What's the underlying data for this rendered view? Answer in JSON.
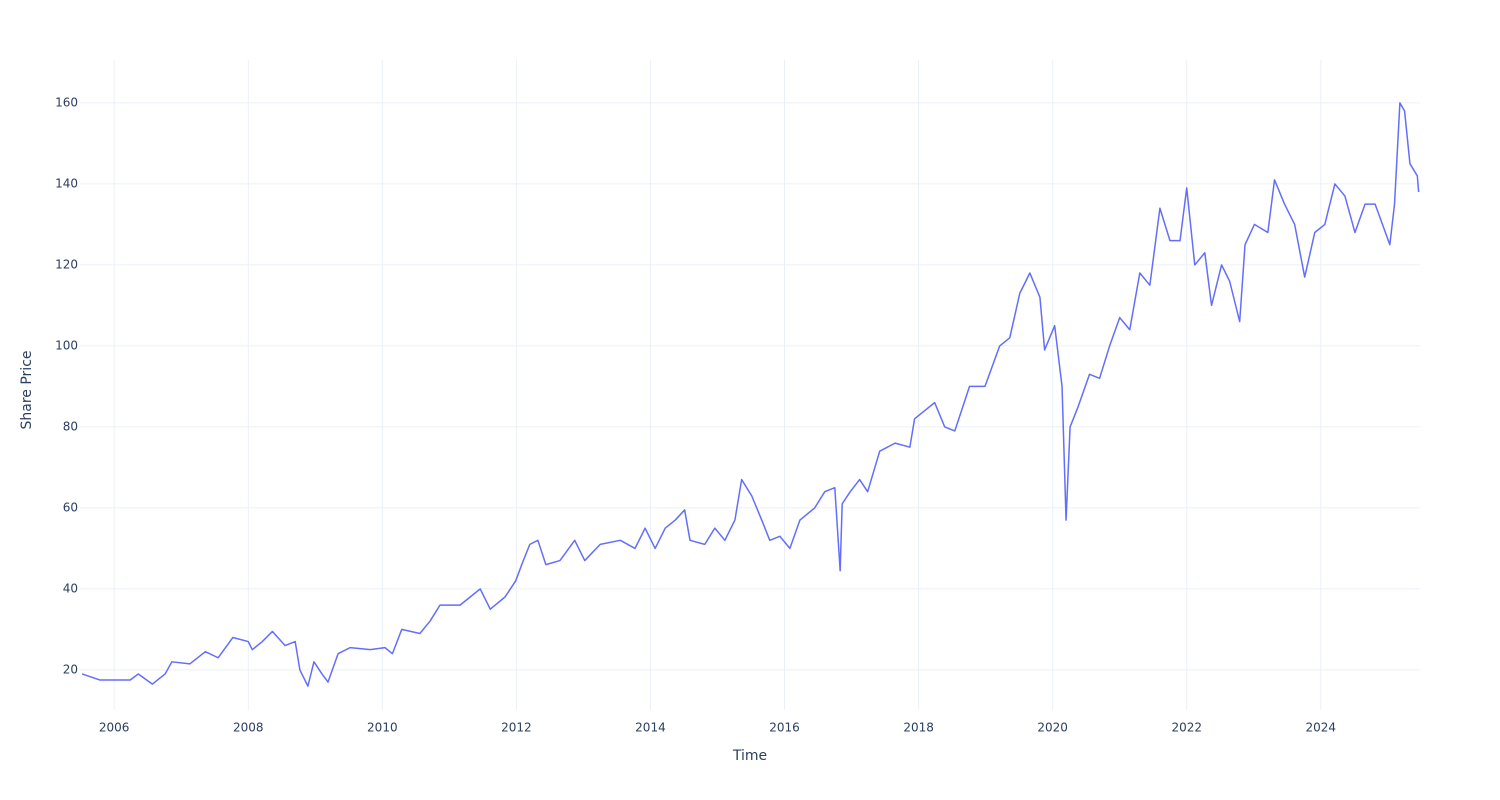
{
  "chart_data": {
    "type": "line",
    "x_label": "Time",
    "y_label": "Share Price",
    "color": "#636efa",
    "grid": true,
    "xlim": [
      2005.49,
      2025.48
    ],
    "ylim": [
      10.1,
      170.6
    ],
    "xticks": [
      2006,
      2008,
      2010,
      2012,
      2014,
      2016,
      2018,
      2020,
      2022,
      2024
    ],
    "yticks": [
      20,
      40,
      60,
      80,
      100,
      120,
      140,
      160
    ],
    "x": [
      2005.52,
      2005.79,
      2006.24,
      2006.36,
      2006.57,
      2006.76,
      2006.86,
      2007.13,
      2007.36,
      2007.55,
      2007.77,
      2008.0,
      2008.06,
      2008.21,
      2008.36,
      2008.55,
      2008.7,
      2008.77,
      2008.89,
      2008.98,
      2009.1,
      2009.19,
      2009.34,
      2009.52,
      2009.82,
      2010.04,
      2010.15,
      2010.29,
      2010.56,
      2010.71,
      2010.86,
      2011.16,
      2011.31,
      2011.46,
      2011.61,
      2011.83,
      2011.99,
      2012.08,
      2012.2,
      2012.32,
      2012.44,
      2012.65,
      2012.87,
      2013.02,
      2013.25,
      2013.55,
      2013.77,
      2013.92,
      2014.07,
      2014.22,
      2014.37,
      2014.51,
      2014.59,
      2014.81,
      2014.96,
      2015.11,
      2015.26,
      2015.36,
      2015.51,
      2015.66,
      2015.78,
      2015.93,
      2016.08,
      2016.23,
      2016.45,
      2016.6,
      2016.75,
      2016.83,
      2016.86,
      2016.98,
      2017.12,
      2017.24,
      2017.42,
      2017.65,
      2017.87,
      2017.94,
      2018.09,
      2018.24,
      2018.39,
      2018.54,
      2018.76,
      2018.99,
      2019.21,
      2019.36,
      2019.51,
      2019.66,
      2019.81,
      2019.88,
      2020.03,
      2020.14,
      2020.2,
      2020.26,
      2020.38,
      2020.55,
      2020.7,
      2020.85,
      2021.0,
      2021.15,
      2021.3,
      2021.45,
      2021.6,
      2021.75,
      2021.9,
      2022.0,
      2022.12,
      2022.27,
      2022.37,
      2022.52,
      2022.64,
      2022.79,
      2022.87,
      2023.01,
      2023.21,
      2023.31,
      2023.46,
      2023.61,
      2023.76,
      2023.91,
      2024.06,
      2024.21,
      2024.36,
      2024.51,
      2024.66,
      2024.81,
      2025.03,
      2025.1,
      2025.18,
      2025.25,
      2025.33,
      2025.44,
      2025.46
    ],
    "values": [
      19,
      17.5,
      17.5,
      19,
      16.5,
      19,
      22,
      21.5,
      24.5,
      23,
      28,
      27,
      25,
      27,
      29.5,
      26,
      27,
      20,
      16,
      22,
      19,
      17,
      24,
      25.5,
      25,
      25.5,
      24,
      30,
      29,
      32,
      36,
      36,
      38,
      40,
      35,
      38,
      42,
      46,
      51,
      52,
      46,
      47,
      52,
      47,
      51,
      52,
      50,
      55,
      50,
      55,
      57,
      59.5,
      52,
      51,
      55,
      52,
      57,
      67,
      63,
      57,
      52,
      53,
      50,
      57,
      60,
      64,
      65,
      44.5,
      61,
      64,
      67,
      64,
      74,
      76,
      75,
      82,
      84,
      86,
      80,
      79,
      90,
      90,
      100,
      102,
      113,
      118,
      112,
      99,
      105,
      90,
      57,
      80,
      85,
      93,
      92,
      100,
      107,
      104,
      118,
      115,
      134,
      126,
      126,
      139,
      120,
      123,
      110,
      120,
      116,
      106,
      125,
      130,
      128,
      141,
      135,
      130,
      117,
      128,
      130,
      140,
      137,
      128,
      135,
      135,
      125,
      135,
      160,
      158,
      145,
      142,
      138
    ]
  }
}
